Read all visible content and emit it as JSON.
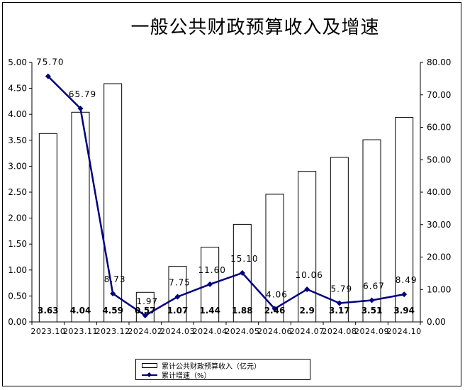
{
  "title": "一般公共财政预算收入及增速",
  "chart_data": {
    "type": "bar+line",
    "categories": [
      "2023.10",
      "2023.11",
      "2023.12",
      "2024.02",
      "2024.03",
      "2024.04",
      "2024.05",
      "2024.06",
      "2024.07",
      "2024.08",
      "2024.09",
      "2024.10"
    ],
    "bar_series": {
      "name": "累计公共财政预算收入（亿元）",
      "values": [
        3.63,
        4.04,
        4.59,
        0.57,
        1.07,
        1.44,
        1.88,
        2.46,
        2.9,
        3.17,
        3.51,
        3.94
      ],
      "labels": [
        "3.63",
        "4.04",
        "4.59",
        "0.57",
        "1.07",
        "1.44",
        "1.88",
        "2.46",
        "2.9",
        "3.17",
        "3.51",
        "3.94"
      ]
    },
    "line_series": {
      "name": "累计增速（%）",
      "values": [
        75.7,
        65.79,
        8.73,
        1.97,
        7.75,
        11.6,
        15.1,
        4.06,
        10.06,
        5.79,
        6.67,
        8.49
      ],
      "labels": [
        "75.70",
        "65.79",
        "8.73",
        "1.97",
        "7.75",
        "11.60",
        "15.10",
        "4.06",
        "10.06",
        "5.79",
        "6.67",
        "8.49"
      ]
    },
    "y_left": {
      "range": [
        0,
        5
      ],
      "ticks": [
        "0.00",
        "0.50",
        "1.00",
        "1.50",
        "2.00",
        "2.50",
        "3.00",
        "3.50",
        "4.00",
        "4.50",
        "5.00"
      ]
    },
    "y_right": {
      "range": [
        0,
        80
      ],
      "ticks": [
        "0.00",
        "10.00",
        "20.00",
        "30.00",
        "40.00",
        "50.00",
        "60.00",
        "70.00",
        "80.00"
      ]
    },
    "line_color": "#000080",
    "bar_fill": "#ffffff",
    "bar_stroke": "#000000",
    "grid": false,
    "legend_position": "bottom"
  }
}
